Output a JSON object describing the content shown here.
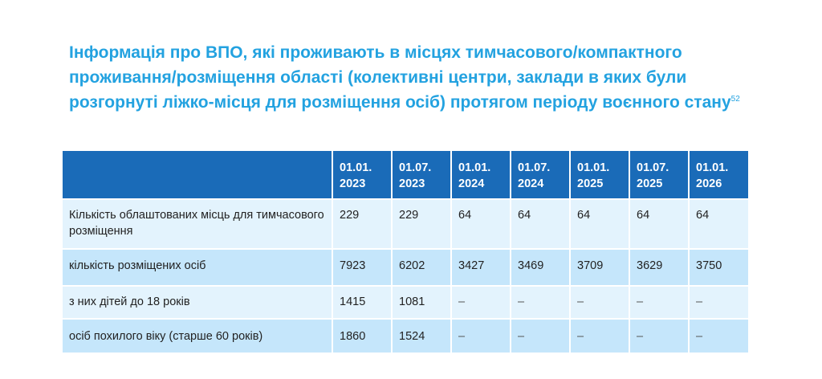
{
  "title": {
    "text": "Інформація про ВПО, які проживають в місцях тимчасового/компактного проживання/розміщення області (колективні центри, заклади в яких були розгорнуті ліжко-місця для розміщення осіб) протягом періоду воєнного стану",
    "footnote": "52"
  },
  "table": {
    "headers": [
      "",
      "01.01. 2023",
      "01.07. 2023",
      "01.01. 2024",
      "01.07. 2024",
      "01.01. 2025",
      "01.07. 2025",
      "01.01. 2026"
    ],
    "rows": [
      {
        "label": "Кількість облаштованих місць для тимчасового розміщення",
        "values": [
          "229",
          "229",
          "64",
          "64",
          "64",
          "64",
          "64"
        ]
      },
      {
        "label": "кількість розміщених осіб",
        "values": [
          "7923",
          "6202",
          "3427",
          "3469",
          "3709",
          "3629",
          "3750"
        ]
      },
      {
        "label": "з них дітей до 18 років",
        "values": [
          "1415",
          "1081",
          "–",
          "–",
          "–",
          "–",
          "–"
        ]
      },
      {
        "label": "осіб похилого віку (старше 60 років)",
        "values": [
          "1860",
          "1524",
          "–",
          "–",
          "–",
          "–",
          "–"
        ]
      }
    ]
  }
}
